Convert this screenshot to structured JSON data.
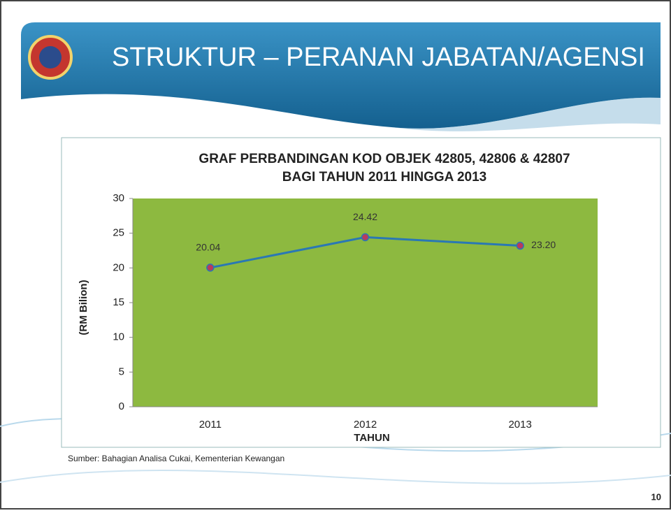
{
  "slide": {
    "title": "STRUKTUR – PERANAN JABATAN/AGENSI",
    "source": "Sumber: Bahagian Analisa Cukai, Kementerian Kewangan",
    "page_number": "10"
  },
  "chart_data": {
    "type": "line",
    "title": [
      "GRAF PERBANDINGAN KOD OBJEK 42805, 42806 & 42807",
      "BAGI TAHUN 2011 HINGGA 2013"
    ],
    "x_label": "TAHUN",
    "y_label": "(RM Bilion)",
    "categories": [
      "2011",
      "2012",
      "2013"
    ],
    "values": [
      20.04,
      24.42,
      23.2
    ],
    "value_labels": [
      "20.04",
      "24.42",
      "23.20"
    ],
    "color": "#2a78b4",
    "marker_color": "#b83a5e",
    "plot_background": "#8db940",
    "ylim": [
      0,
      30
    ],
    "yticks": [
      0,
      5,
      10,
      15,
      20,
      25,
      30
    ],
    "grid": false
  }
}
